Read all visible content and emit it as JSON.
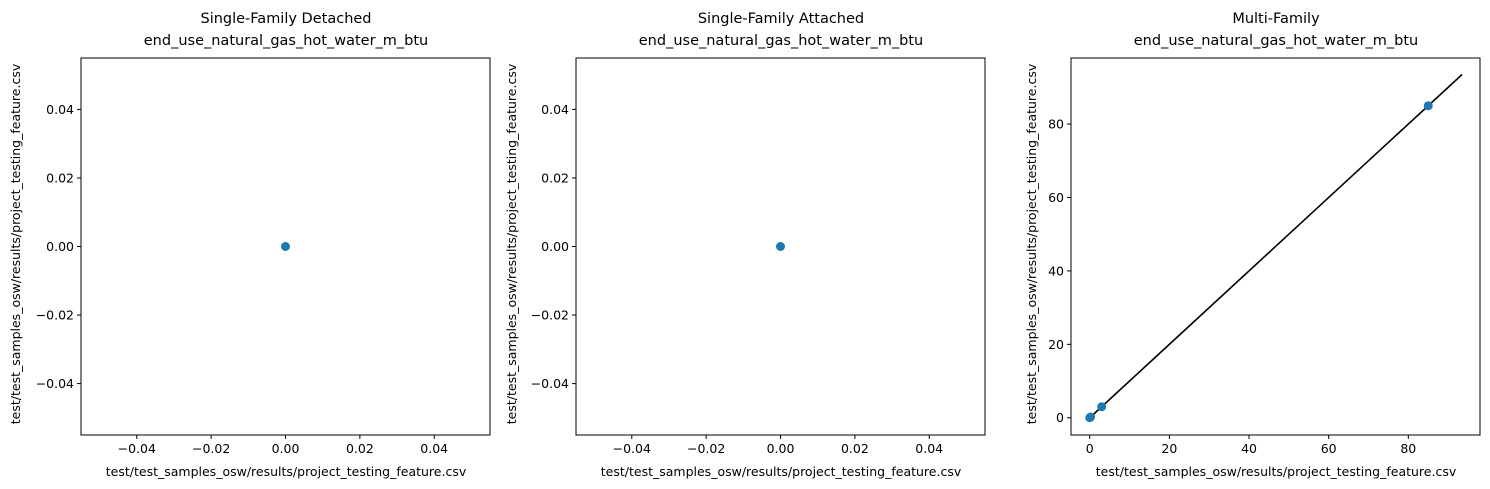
{
  "chart_data": [
    {
      "type": "scatter",
      "title": [
        "Single-Family Detached",
        "end_use_natural_gas_hot_water_m_btu"
      ],
      "xlabel": "test/test_samples_osw/results/project_testing_feature.csv",
      "ylabel": "test/test_samples_osw/results/project_testing_feature.csv",
      "xlim": [
        -0.055,
        0.055
      ],
      "ylim": [
        -0.055,
        0.055
      ],
      "xticks": [
        -0.04,
        -0.02,
        0.0,
        0.02,
        0.04
      ],
      "yticks": [
        -0.04,
        -0.02,
        0.0,
        0.02,
        0.04
      ],
      "xtick_labels": [
        "−0.04",
        "−0.02",
        "0.00",
        "0.02",
        "0.04"
      ],
      "ytick_labels": [
        "−0.04",
        "−0.02",
        "0.00",
        "0.02",
        "0.04"
      ],
      "points": [
        {
          "x": 0,
          "y": 0
        }
      ],
      "line": null,
      "point_color": "#1f77b4",
      "grid": false
    },
    {
      "type": "scatter",
      "title": [
        "Single-Family Attached",
        "end_use_natural_gas_hot_water_m_btu"
      ],
      "xlabel": "test/test_samples_osw/results/project_testing_feature.csv",
      "ylabel": "test/test_samples_osw/results/project_testing_feature.csv",
      "xlim": [
        -0.055,
        0.055
      ],
      "ylim": [
        -0.055,
        0.055
      ],
      "xticks": [
        -0.04,
        -0.02,
        0.0,
        0.02,
        0.04
      ],
      "yticks": [
        -0.04,
        -0.02,
        0.0,
        0.02,
        0.04
      ],
      "xtick_labels": [
        "−0.04",
        "−0.02",
        "0.00",
        "0.02",
        "0.04"
      ],
      "ytick_labels": [
        "−0.04",
        "−0.02",
        "0.00",
        "0.02",
        "0.04"
      ],
      "points": [
        {
          "x": 0,
          "y": 0
        }
      ],
      "line": null,
      "point_color": "#1f77b4",
      "grid": false
    },
    {
      "type": "scatter",
      "title": [
        "Multi-Family",
        "end_use_natural_gas_hot_water_m_btu"
      ],
      "xlabel": "test/test_samples_osw/results/project_testing_feature.csv",
      "ylabel": "test/test_samples_osw/results/project_testing_feature.csv",
      "xlim": [
        -4.7,
        98.0
      ],
      "ylim": [
        -4.7,
        98.0
      ],
      "xticks": [
        0,
        20,
        40,
        60,
        80
      ],
      "yticks": [
        0,
        20,
        40,
        60,
        80
      ],
      "xtick_labels": [
        "0",
        "20",
        "40",
        "60",
        "80"
      ],
      "ytick_labels": [
        "0",
        "20",
        "40",
        "60",
        "80"
      ],
      "points": [
        {
          "x": 0,
          "y": 0
        },
        {
          "x": 0.2,
          "y": 0.2
        },
        {
          "x": 3.0,
          "y": 3.0
        },
        {
          "x": 85.0,
          "y": 85.0
        }
      ],
      "line": {
        "x": [
          0,
          93.5
        ],
        "y": [
          0,
          93.5
        ],
        "color": "#000000"
      },
      "point_color": "#1f77b4",
      "grid": false
    }
  ]
}
